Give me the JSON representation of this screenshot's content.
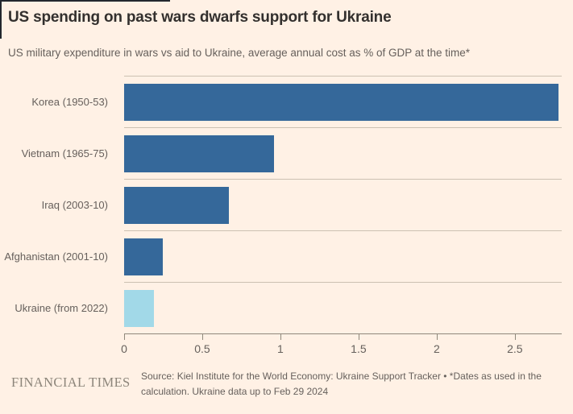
{
  "chart_data": {
    "type": "bar",
    "orientation": "horizontal",
    "title": "US spending on past wars dwarfs support for Ukraine",
    "subtitle": "US military expenditure in wars vs aid to Ukraine, average annual cost as % of GDP at the time*",
    "categories": [
      "Korea (1950-53)",
      "Vietnam (1965-75)",
      "Iraq (2003-10)",
      "Afghanistan (2001-10)",
      "Ukraine (from 2022)"
    ],
    "values": [
      2.78,
      0.96,
      0.67,
      0.25,
      0.19
    ],
    "unit": "% of GDP",
    "xlim": [
      0,
      2.8
    ],
    "x_tick_values": [
      0,
      0.5,
      1,
      1.5,
      2,
      2.5
    ],
    "x_tick_labels": [
      "0",
      "0.5",
      "1",
      "1.5",
      "2",
      "2.5"
    ],
    "bar_colors": [
      "#35689A",
      "#35689A",
      "#35689A",
      "#35689A",
      "#A2D9E8"
    ],
    "grid": "row-separator-lines",
    "legend": "none"
  },
  "footer": {
    "logo": "FINANCIAL TIMES",
    "source": "Source: Kiel Institute for the World Economy: Ukraine Support Tracker • *Dates as used in the calculation. Ukraine data up to Feb 29 2024"
  },
  "colors": {
    "background": "#FFF1E5",
    "bar_primary": "#35689A",
    "bar_highlight": "#A2D9E8",
    "text_primary": "#33302E",
    "text_secondary": "#66605C",
    "row_separator": "#CCC1B2",
    "axis_line": "#8F887B",
    "logo_text": "#8C857A"
  }
}
